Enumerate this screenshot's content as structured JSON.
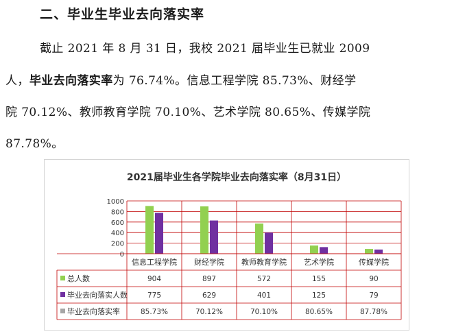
{
  "section": {
    "heading": "二、毕业生毕业去向落实率"
  },
  "paragraph": {
    "l1": "截止 2021 年 8 月 31 日，我校 2021 届毕业生已就业 2009",
    "l2a": "人，",
    "l2b": "毕业去向落实率",
    "l2c": "为 76.74%。信息工程学院 85.73%、财经学",
    "l3": "院 70.12%、教师教育学院 70.10%、艺术学院 80.65%、传媒学院",
    "l4": "87.78%。"
  },
  "colors": {
    "total": "#92d050",
    "employed": "#7030a0",
    "rate": "#a6a6a6",
    "grid": "#c00000",
    "axis": "#808080"
  },
  "chart_data": {
    "type": "bar",
    "title": "2021届毕业生各学院毕业去向落实率（8月31日）",
    "categories": [
      "信息工程学院",
      "财经学院",
      "教师教育学院",
      "艺术学院",
      "传媒学院"
    ],
    "ylim": [
      0,
      1000
    ],
    "yticks": [
      "0",
      "200",
      "400",
      "600",
      "800",
      "1000"
    ],
    "ytick_values": [
      0,
      200,
      400,
      600,
      800,
      1000
    ],
    "series": [
      {
        "name": "总人数",
        "values": [
          904,
          897,
          572,
          155,
          90
        ]
      },
      {
        "name": "毕业去向落实人数",
        "values": [
          775,
          629,
          401,
          125,
          79
        ]
      }
    ],
    "table": {
      "rows": [
        {
          "label": "总人数",
          "cells": [
            "904",
            "897",
            "572",
            "155",
            "90"
          ]
        },
        {
          "label": "毕业去向落实人数",
          "cells": [
            "775",
            "629",
            "401",
            "125",
            "79"
          ]
        },
        {
          "label": "毕业去向落实率",
          "cells": [
            "85.73%",
            "70.12%",
            "70.10%",
            "80.65%",
            "87.78%"
          ]
        }
      ]
    }
  }
}
